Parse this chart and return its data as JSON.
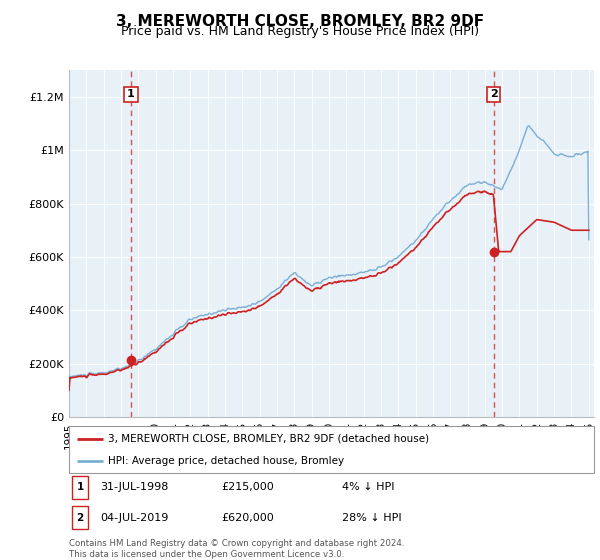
{
  "title": "3, MEREWORTH CLOSE, BROMLEY, BR2 9DF",
  "subtitle": "Price paid vs. HM Land Registry's House Price Index (HPI)",
  "title_fontsize": 11,
  "subtitle_fontsize": 9,
  "bg_color": "#e8f0f8",
  "line_color_hpi": "#7aafd4",
  "line_color_price": "#cc2222",
  "dot_color": "#cc2222",
  "vline_color": "#cc4444",
  "annotation_box_color": "#ffffff",
  "annotation_box_edge": "#cc2222",
  "ylim": [
    0,
    1300000
  ],
  "yticks": [
    0,
    200000,
    400000,
    600000,
    800000,
    1000000,
    1200000
  ],
  "ytick_labels": [
    "£0",
    "£200K",
    "£400K",
    "£600K",
    "£800K",
    "£1M",
    "£1.2M"
  ],
  "sale1_date": 1998.58,
  "sale1_price": 215000,
  "sale2_date": 2019.5,
  "sale2_price": 620000,
  "legend_line1": "3, MEREWORTH CLOSE, BROMLEY, BR2 9DF (detached house)",
  "legend_line2": "HPI: Average price, detached house, Bromley",
  "footer_line1": "Contains HM Land Registry data © Crown copyright and database right 2024.",
  "footer_line2": "This data is licensed under the Open Government Licence v3.0.",
  "row1_date": "31-JUL-1998",
  "row1_price": "£215,000",
  "row1_pct": "4% ↓ HPI",
  "row2_date": "04-JUL-2019",
  "row2_price": "£620,000",
  "row2_pct": "28% ↓ HPI"
}
